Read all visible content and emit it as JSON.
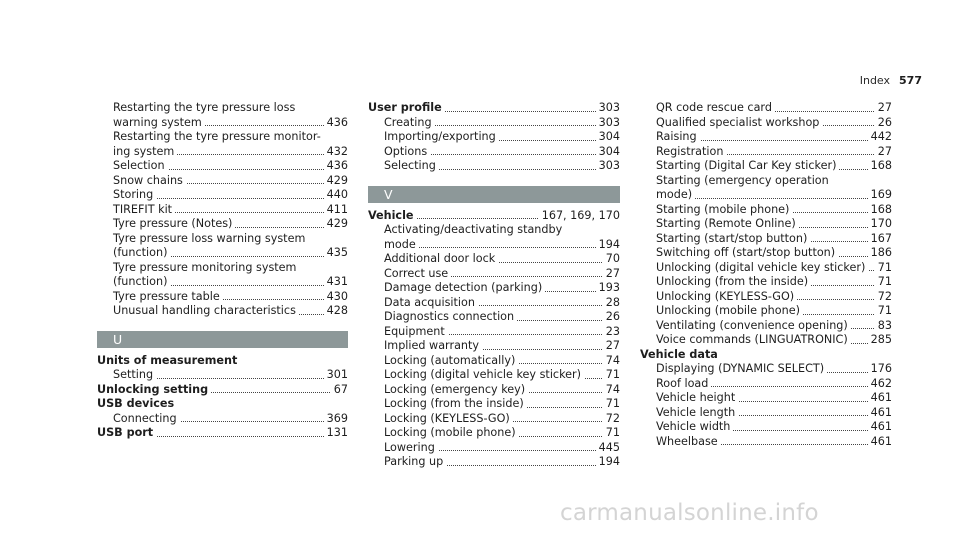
{
  "header": {
    "label": "Index",
    "page": "577"
  },
  "columns": [
    {
      "lines": [
        {
          "t": "Restarting the tyre pressure loss",
          "ind": 1
        },
        {
          "t": "warning system",
          "p": "436",
          "ind": 1
        },
        {
          "t": "Restarting the tyre pressure monitor-",
          "ind": 1
        },
        {
          "t": "ing system",
          "p": "432",
          "ind": 1
        },
        {
          "t": "Selection",
          "p": "436",
          "ind": 1
        },
        {
          "t": "Snow chains",
          "p": "429",
          "ind": 1
        },
        {
          "t": "Storing",
          "p": "440",
          "ind": 1
        },
        {
          "t": "TIREFIT kit",
          "p": "411",
          "ind": 1
        },
        {
          "t": "Tyre pressure (Notes)",
          "p": "429",
          "ind": 1
        },
        {
          "t": "Tyre pressure loss warning system",
          "ind": 1
        },
        {
          "t": "(function)",
          "p": "435",
          "ind": 1
        },
        {
          "t": "Tyre pressure monitoring system",
          "ind": 1
        },
        {
          "t": "(function)",
          "p": "431",
          "ind": 1
        },
        {
          "t": "Tyre pressure table",
          "p": "430",
          "ind": 1
        },
        {
          "t": "Unusual handling characteristics",
          "p": "428",
          "ind": 1
        },
        {
          "section": "U"
        },
        {
          "t": "Units of measurement",
          "b": 1
        },
        {
          "t": "Setting",
          "p": "301",
          "ind": 1
        },
        {
          "t": "Unlocking setting",
          "p": "67",
          "b": 1
        },
        {
          "t": "USB devices",
          "b": 1
        },
        {
          "t": "Connecting",
          "p": "369",
          "ind": 1
        },
        {
          "t": "USB port",
          "p": "131",
          "b": 1
        }
      ]
    },
    {
      "lines": [
        {
          "t": "User profile",
          "p": "303",
          "b": 1
        },
        {
          "t": "Creating",
          "p": "303",
          "ind": 1
        },
        {
          "t": "Importing/exporting",
          "p": "304",
          "ind": 1
        },
        {
          "t": "Options",
          "p": "304",
          "ind": 1
        },
        {
          "t": "Selecting",
          "p": "303",
          "ind": 1
        },
        {
          "section": "V"
        },
        {
          "t": "Vehicle",
          "p": "167, 169, 170",
          "b": 1
        },
        {
          "t": "Activating/deactivating standby",
          "ind": 1
        },
        {
          "t": "mode",
          "p": "194",
          "ind": 1
        },
        {
          "t": "Additional door lock",
          "p": "70",
          "ind": 1
        },
        {
          "t": "Correct use",
          "p": "27",
          "ind": 1
        },
        {
          "t": "Damage detection (parking)",
          "p": "193",
          "ind": 1
        },
        {
          "t": "Data acquisition",
          "p": "28",
          "ind": 1
        },
        {
          "t": "Diagnostics connection",
          "p": "26",
          "ind": 1
        },
        {
          "t": "Equipment",
          "p": "23",
          "ind": 1
        },
        {
          "t": "Implied warranty",
          "p": "27",
          "ind": 1
        },
        {
          "t": "Locking (automatically)",
          "p": "74",
          "ind": 1
        },
        {
          "t": "Locking (digital vehicle key sticker)",
          "p": "71",
          "ind": 1
        },
        {
          "t": "Locking (emergency key)",
          "p": "74",
          "ind": 1
        },
        {
          "t": "Locking (from the inside)",
          "p": "71",
          "ind": 1
        },
        {
          "t": "Locking (KEYLESS-GO)",
          "p": "72",
          "ind": 1
        },
        {
          "t": "Locking (mobile phone)",
          "p": "71",
          "ind": 1
        },
        {
          "t": "Lowering",
          "p": "445",
          "ind": 1
        },
        {
          "t": "Parking up",
          "p": "194",
          "ind": 1
        }
      ]
    },
    {
      "lines": [
        {
          "t": "QR code rescue card",
          "p": "27",
          "ind": 1
        },
        {
          "t": "Qualified specialist workshop",
          "p": "26",
          "ind": 1
        },
        {
          "t": "Raising",
          "p": "442",
          "ind": 1
        },
        {
          "t": "Registration",
          "p": "27",
          "ind": 1
        },
        {
          "t": "Starting (Digital Car Key sticker)",
          "p": "168",
          "ind": 1
        },
        {
          "t": "Starting (emergency operation",
          "ind": 1
        },
        {
          "t": "mode)",
          "p": "169",
          "ind": 1
        },
        {
          "t": "Starting (mobile phone)",
          "p": "168",
          "ind": 1
        },
        {
          "t": "Starting (Remote Online)",
          "p": "170",
          "ind": 1
        },
        {
          "t": "Starting (start/stop button)",
          "p": "167",
          "ind": 1
        },
        {
          "t": "Switching off (start/stop button)",
          "p": "186",
          "ind": 1
        },
        {
          "t": "Unlocking (digital vehicle key sticker)",
          "p": "71",
          "ind": 1
        },
        {
          "t": "Unlocking (from the inside)",
          "p": "71",
          "ind": 1
        },
        {
          "t": "Unlocking (KEYLESS-GO)",
          "p": "72",
          "ind": 1
        },
        {
          "t": "Unlocking (mobile phone)",
          "p": "71",
          "ind": 1
        },
        {
          "t": "Ventilating (convenience opening)",
          "p": "83",
          "ind": 1
        },
        {
          "t": "Voice commands (LINGUATRONIC)",
          "p": "285",
          "ind": 1
        },
        {
          "t": "Vehicle data",
          "b": 1
        },
        {
          "t": "Displaying (DYNAMIC SELECT)",
          "p": "176",
          "ind": 1
        },
        {
          "t": "Roof load",
          "p": "462",
          "ind": 1
        },
        {
          "t": "Vehicle height",
          "p": "461",
          "ind": 1
        },
        {
          "t": "Vehicle length",
          "p": "461",
          "ind": 1
        },
        {
          "t": "Vehicle width",
          "p": "461",
          "ind": 1
        },
        {
          "t": "Wheelbase",
          "p": "461",
          "ind": 1
        }
      ]
    }
  ],
  "watermark": "carmanualsonline.info"
}
